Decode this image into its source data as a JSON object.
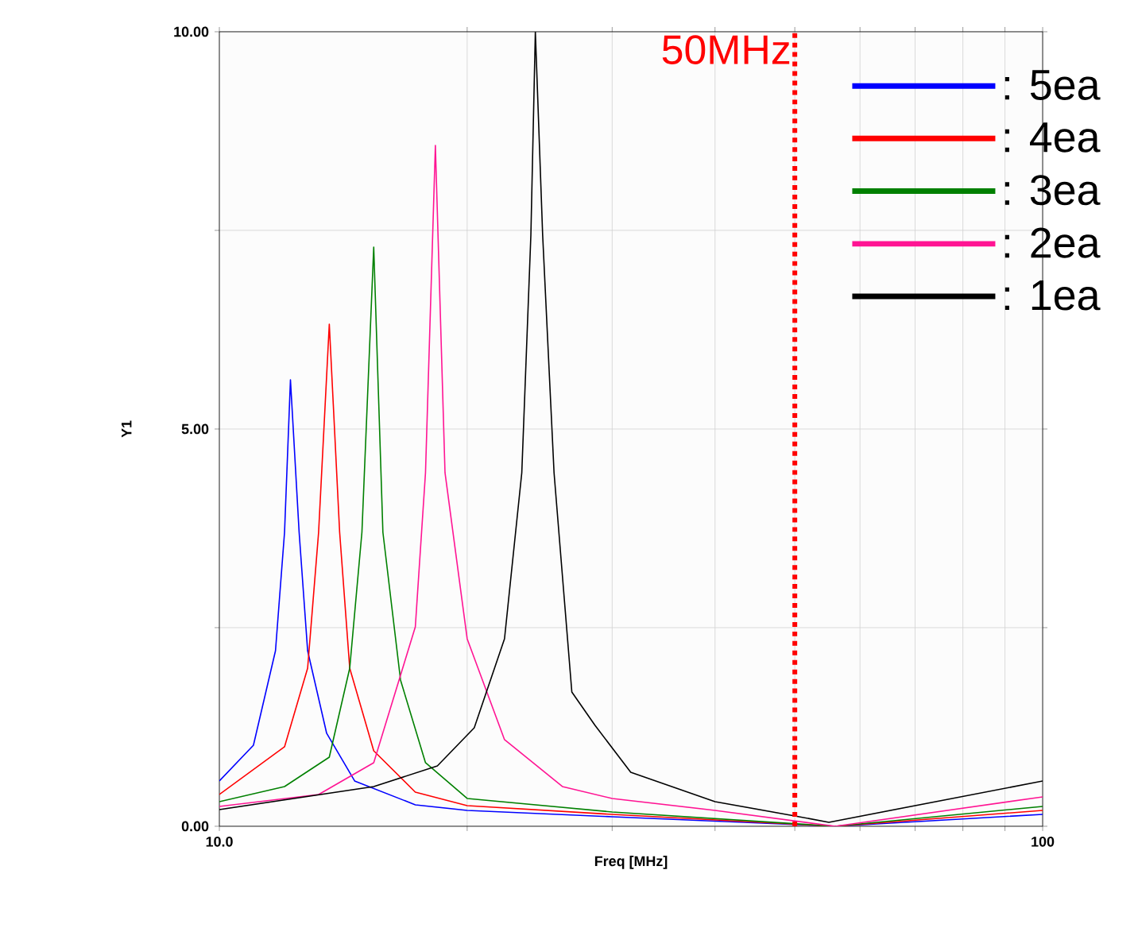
{
  "chart_data": {
    "type": "line",
    "xlabel": "Freq [MHz]",
    "ylabel": "Y1",
    "log": "x",
    "grid": true,
    "legend": "top right",
    "marker": "none",
    "line_style": "solid",
    "xlim": [
      10,
      100
    ],
    "ylim": [
      0,
      10
    ],
    "xticks": [
      {
        "value": 10,
        "label": "10.0"
      },
      {
        "value": 20,
        "label": null
      },
      {
        "value": 30,
        "label": null
      },
      {
        "value": 40,
        "label": null
      },
      {
        "value": 50,
        "label": null
      },
      {
        "value": 60,
        "label": null
      },
      {
        "value": 70,
        "label": null
      },
      {
        "value": 80,
        "label": null
      },
      {
        "value": 90,
        "label": null
      },
      {
        "value": 100,
        "label": "100"
      }
    ],
    "yticks": [
      {
        "value": 0,
        "label": "0.00"
      },
      {
        "value": 2.5,
        "label": null
      },
      {
        "value": 5,
        "label": "5.00"
      },
      {
        "value": 7.5,
        "label": null
      },
      {
        "value": 10,
        "label": "10.00"
      }
    ],
    "ref_lines": [
      {
        "axis": "x",
        "value": 50,
        "label": "50MHz",
        "color": "#ff0000",
        "line_style": "dotted"
      }
    ],
    "series": [
      {
        "name": ": 5ea",
        "color": "#0000ff",
        "x": [
          10,
          11.0,
          11.7,
          12.0,
          12.2,
          12.5,
          12.8,
          13.5,
          14.6,
          17.3,
          20,
          30,
          56,
          100
        ],
        "values": [
          0.57,
          1.02,
          2.21,
          3.7,
          5.62,
          3.7,
          2.21,
          1.17,
          0.57,
          0.27,
          0.2,
          0.12,
          0,
          0.15
        ]
      },
      {
        "name": ": 4ea",
        "color": "#ff0000",
        "x": [
          10,
          12.0,
          12.8,
          13.2,
          13.6,
          14.0,
          14.4,
          15.4,
          17.3,
          20,
          30,
          56,
          100
        ],
        "values": [
          0.4,
          1.0,
          1.99,
          3.7,
          6.32,
          3.7,
          1.99,
          0.95,
          0.43,
          0.26,
          0.15,
          0,
          0.2
        ]
      },
      {
        "name": ": 3ea",
        "color": "#008000",
        "x": [
          10,
          12.0,
          13.6,
          14.4,
          14.9,
          15.4,
          15.8,
          16.6,
          17.8,
          20,
          30,
          56,
          100
        ],
        "values": [
          0.31,
          0.5,
          0.87,
          1.99,
          3.7,
          7.29,
          3.7,
          1.84,
          0.8,
          0.35,
          0.18,
          0,
          0.25
        ]
      },
      {
        "name": ": 2ea",
        "color": "#ff1493",
        "x": [
          10,
          13.2,
          15.4,
          17.3,
          17.8,
          18.3,
          18.8,
          20.0,
          22.2,
          26.1,
          30,
          40,
          56,
          100
        ],
        "values": [
          0.25,
          0.4,
          0.8,
          2.51,
          4.45,
          8.57,
          4.45,
          2.36,
          1.09,
          0.5,
          0.35,
          0.2,
          0,
          0.37
        ]
      },
      {
        "name": ": 1ea",
        "color": "#000000",
        "x": [
          10,
          15.4,
          18.4,
          20.4,
          22.2,
          23.3,
          23.9,
          24.2,
          24.7,
          25.5,
          26.8,
          28.6,
          31.6,
          40,
          50,
          55,
          100
        ],
        "values": [
          0.21,
          0.5,
          0.76,
          1.24,
          2.36,
          4.45,
          7.44,
          10.0,
          7.44,
          4.45,
          1.69,
          1.27,
          0.68,
          0.31,
          0.13,
          0.05,
          0.57
        ]
      }
    ]
  }
}
